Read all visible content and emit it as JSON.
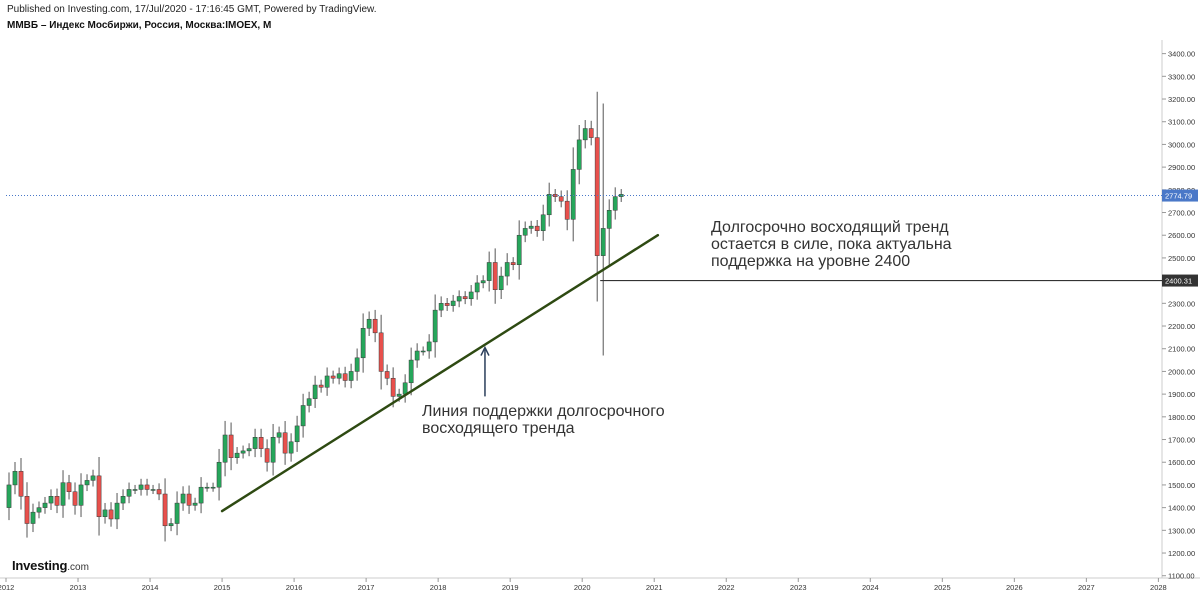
{
  "header": {
    "published": "Published on Investing.com, 17/Jul/2020 - 17:16:45 GMT, Powered by TradingView.",
    "instrument": "ММВБ – Индекс Мосбиржи, Россия, Москва:IMOEX, M"
  },
  "logo": {
    "brand": "Investing",
    "domain": ".com"
  },
  "annotations": {
    "trend": "Долгосрочно восходящий тренд\nостается в силе, пока актуальна\nподдержка на уровне 2400",
    "support": "Линия поддержки долгосрочного\nвосходящего тренда"
  },
  "colors": {
    "up": "#26a65b",
    "down": "#e8504c",
    "wick": "#555555",
    "trendline": "#2e4a12",
    "price_line": "#4a78c8",
    "level_line": "#333333",
    "axis_text": "#333333"
  },
  "chart_data": {
    "type": "candlestick",
    "interval": "monthly",
    "y_axis": {
      "range": [
        1090,
        3460
      ],
      "ticks": [
        "1100.00",
        "1200.00",
        "1300.00",
        "1400.00",
        "1500.00",
        "1600.00",
        "1700.00",
        "1800.00",
        "1900.00",
        "2000.00",
        "2100.00",
        "2200.00",
        "2300.00",
        "2400.00",
        "2500.00",
        "2600.00",
        "2700.00",
        "2800.00",
        "2900.00",
        "3000.00",
        "3100.00",
        "3200.00",
        "3300.00",
        "3400.00"
      ]
    },
    "x_axis": {
      "range_years": [
        2012,
        2028.05
      ],
      "ticks": [
        "2012",
        "2013",
        "2014",
        "2015",
        "2016",
        "2017",
        "2018",
        "2019",
        "2020",
        "2021",
        "2022",
        "2023",
        "2024",
        "2025",
        "2026",
        "2027",
        "2028"
      ]
    },
    "current_price": {
      "value": 2774.79,
      "label": "2774.79"
    },
    "level": {
      "value": 2400.31,
      "label": "2400.31",
      "from_year": 2020.25
    },
    "support_line": {
      "from": {
        "year": 2015.0,
        "price": 1385
      },
      "to": {
        "year": 2021.05,
        "price": 2600
      }
    },
    "arrow": {
      "year": 2018.65,
      "price_from": 1890,
      "price_to": 2105
    },
    "closes": [
      1500,
      1560,
      1450,
      1330,
      1380,
      1400,
      1420,
      1450,
      1410,
      1510,
      1470,
      1410,
      1500,
      1520,
      1540,
      1360,
      1390,
      1350,
      1420,
      1450,
      1480,
      1480,
      1500,
      1480,
      1480,
      1460,
      1320,
      1330,
      1420,
      1460,
      1410,
      1420,
      1490,
      1490,
      1490,
      1600,
      1720,
      1620,
      1640,
      1650,
      1660,
      1710,
      1660,
      1600,
      1710,
      1730,
      1640,
      1690,
      1760,
      1850,
      1880,
      1940,
      1930,
      1980,
      1970,
      1990,
      1960,
      2000,
      2060,
      2190,
      2230,
      2170,
      2000,
      1970,
      1890,
      1900,
      1950,
      2050,
      2090,
      2090,
      2130,
      2270,
      2300,
      2290,
      2310,
      2330,
      2320,
      2350,
      2390,
      2400,
      2480,
      2360,
      2420,
      2480,
      2470,
      2600,
      2630,
      2640,
      2620,
      2690,
      2780,
      2770,
      2750,
      2670,
      2890,
      3020,
      3070,
      3030,
      2510,
      2630,
      2710,
      2770,
      2780
    ],
    "open_first": 1400
  }
}
